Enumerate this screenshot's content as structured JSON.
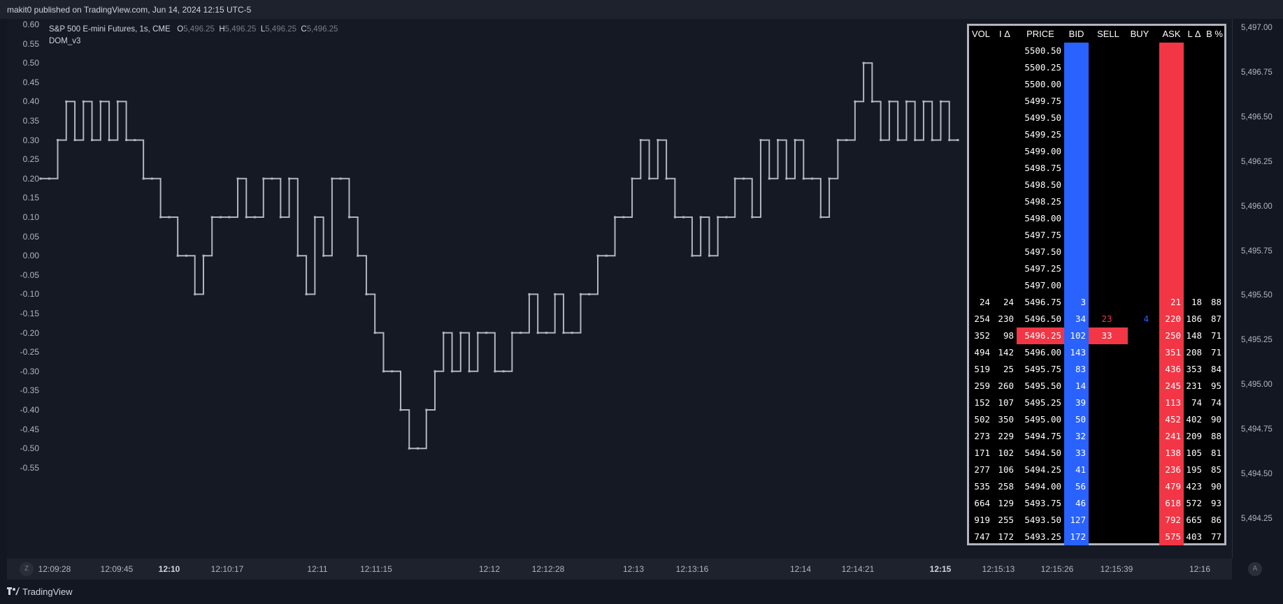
{
  "header": {
    "publish_text": "makit0 published on TradingView.com, Jun 14, 2024 12:15 UTC-5"
  },
  "legend": {
    "symbol": "S&P 500 E-mini Futures, 1s, CME",
    "open_label": "O",
    "open": "5,496.25",
    "high_label": "H",
    "high": "5,496.25",
    "low_label": "L",
    "low": "5,496.25",
    "close_label": "C",
    "close": "5,496.25",
    "indicator": "DOM_v3"
  },
  "left_axis": {
    "ticks": [
      "0.60",
      "0.55",
      "0.50",
      "0.45",
      "0.40",
      "0.35",
      "0.30",
      "0.25",
      "0.20",
      "0.15",
      "0.10",
      "0.05",
      "0.00",
      "-0.05",
      "-0.10",
      "-0.15",
      "-0.20",
      "-0.25",
      "-0.30",
      "-0.35",
      "-0.40",
      "-0.45",
      "-0.50",
      "-0.55"
    ]
  },
  "right_axis": {
    "ticks": [
      "5,497.00",
      "5,496.75",
      "5,496.50",
      "5,496.25",
      "5,496.00",
      "5,495.75",
      "5,495.50",
      "5,495.25",
      "5,495.00",
      "5,494.75",
      "5,494.50",
      "5,494.25"
    ]
  },
  "time_axis": {
    "z_label": "Z",
    "a_label": "A",
    "ticks": [
      {
        "label": "12:09:28",
        "bold": false
      },
      {
        "label": "12:09:45",
        "bold": false
      },
      {
        "label": "12:10",
        "bold": true
      },
      {
        "label": "12:10:17",
        "bold": false
      },
      {
        "label": "12:11",
        "bold": false
      },
      {
        "label": "12:11:15",
        "bold": false
      },
      {
        "label": "12:12",
        "bold": false
      },
      {
        "label": "12:12:28",
        "bold": false
      },
      {
        "label": "12:13",
        "bold": false
      },
      {
        "label": "12:13:16",
        "bold": false
      },
      {
        "label": "12:14",
        "bold": false
      },
      {
        "label": "12:14:21",
        "bold": false
      },
      {
        "label": "12:15",
        "bold": true
      },
      {
        "label": "12:15:13",
        "bold": false
      },
      {
        "label": "12:15:26",
        "bold": false
      },
      {
        "label": "12:15:39",
        "bold": false
      },
      {
        "label": "12:16",
        "bold": false
      }
    ]
  },
  "footer": {
    "brand": "TradingView",
    "logo": "tradingview-logo"
  },
  "dom": {
    "headers": {
      "vol": "VOL",
      "idelta": "I Δ",
      "price": "PRICE",
      "bid": "BID",
      "sell": "SELL",
      "buy": "BUY",
      "ask": "ASK",
      "ldelta": "L Δ",
      "bpct": "B %"
    },
    "rows": [
      {
        "vol": "",
        "id": "",
        "price": "5500.50",
        "bid": "",
        "sell": "",
        "buy": "",
        "ask": "",
        "ld": "",
        "bp": ""
      },
      {
        "vol": "",
        "id": "",
        "price": "5500.25",
        "bid": "",
        "sell": "",
        "buy": "",
        "ask": "",
        "ld": "",
        "bp": ""
      },
      {
        "vol": "",
        "id": "",
        "price": "5500.00",
        "bid": "",
        "sell": "",
        "buy": "",
        "ask": "",
        "ld": "",
        "bp": ""
      },
      {
        "vol": "",
        "id": "",
        "price": "5499.75",
        "bid": "",
        "sell": "",
        "buy": "",
        "ask": "",
        "ld": "",
        "bp": ""
      },
      {
        "vol": "",
        "id": "",
        "price": "5499.50",
        "bid": "",
        "sell": "",
        "buy": "",
        "ask": "",
        "ld": "",
        "bp": ""
      },
      {
        "vol": "",
        "id": "",
        "price": "5499.25",
        "bid": "",
        "sell": "",
        "buy": "",
        "ask": "",
        "ld": "",
        "bp": ""
      },
      {
        "vol": "",
        "id": "",
        "price": "5499.00",
        "bid": "",
        "sell": "",
        "buy": "",
        "ask": "",
        "ld": "",
        "bp": ""
      },
      {
        "vol": "",
        "id": "",
        "price": "5498.75",
        "bid": "",
        "sell": "",
        "buy": "",
        "ask": "",
        "ld": "",
        "bp": ""
      },
      {
        "vol": "",
        "id": "",
        "price": "5498.50",
        "bid": "",
        "sell": "",
        "buy": "",
        "ask": "",
        "ld": "",
        "bp": ""
      },
      {
        "vol": "",
        "id": "",
        "price": "5498.25",
        "bid": "",
        "sell": "",
        "buy": "",
        "ask": "",
        "ld": "",
        "bp": ""
      },
      {
        "vol": "",
        "id": "",
        "price": "5498.00",
        "bid": "",
        "sell": "",
        "buy": "",
        "ask": "",
        "ld": "",
        "bp": ""
      },
      {
        "vol": "",
        "id": "",
        "price": "5497.75",
        "bid": "",
        "sell": "",
        "buy": "",
        "ask": "",
        "ld": "",
        "bp": ""
      },
      {
        "vol": "",
        "id": "",
        "price": "5497.50",
        "bid": "",
        "sell": "",
        "buy": "",
        "ask": "",
        "ld": "",
        "bp": ""
      },
      {
        "vol": "",
        "id": "",
        "price": "5497.25",
        "bid": "",
        "sell": "",
        "buy": "",
        "ask": "",
        "ld": "",
        "bp": ""
      },
      {
        "vol": "",
        "id": "",
        "price": "5497.00",
        "bid": "",
        "sell": "",
        "buy": "",
        "ask": "",
        "ld": "",
        "bp": ""
      },
      {
        "vol": "24",
        "id": "24",
        "price": "5496.75",
        "bid": "3",
        "sell": "",
        "buy": "",
        "ask": "21",
        "ld": "18",
        "bp": "88"
      },
      {
        "vol": "254",
        "id": "230",
        "price": "5496.50",
        "bid": "34",
        "sell": "23",
        "buy": "4",
        "ask": "220",
        "ld": "186",
        "bp": "87"
      },
      {
        "vol": "352",
        "id": "98",
        "price": "5496.25",
        "bid": "102",
        "sell": "33",
        "buy": "",
        "ask": "250",
        "ld": "148",
        "bp": "71",
        "current": true
      },
      {
        "vol": "494",
        "id": "142",
        "price": "5496.00",
        "bid": "143",
        "sell": "",
        "buy": "",
        "ask": "351",
        "ld": "208",
        "bp": "71"
      },
      {
        "vol": "519",
        "id": "25",
        "price": "5495.75",
        "bid": "83",
        "sell": "",
        "buy": "",
        "ask": "436",
        "ld": "353",
        "bp": "84"
      },
      {
        "vol": "259",
        "id": "260",
        "price": "5495.50",
        "bid": "14",
        "sell": "",
        "buy": "",
        "ask": "245",
        "ld": "231",
        "bp": "95"
      },
      {
        "vol": "152",
        "id": "107",
        "price": "5495.25",
        "bid": "39",
        "sell": "",
        "buy": "",
        "ask": "113",
        "ld": "74",
        "bp": "74"
      },
      {
        "vol": "502",
        "id": "350",
        "price": "5495.00",
        "bid": "50",
        "sell": "",
        "buy": "",
        "ask": "452",
        "ld": "402",
        "bp": "90"
      },
      {
        "vol": "273",
        "id": "229",
        "price": "5494.75",
        "bid": "32",
        "sell": "",
        "buy": "",
        "ask": "241",
        "ld": "209",
        "bp": "88"
      },
      {
        "vol": "171",
        "id": "102",
        "price": "5494.50",
        "bid": "33",
        "sell": "",
        "buy": "",
        "ask": "138",
        "ld": "105",
        "bp": "81"
      },
      {
        "vol": "277",
        "id": "106",
        "price": "5494.25",
        "bid": "41",
        "sell": "",
        "buy": "",
        "ask": "236",
        "ld": "195",
        "bp": "85"
      },
      {
        "vol": "535",
        "id": "258",
        "price": "5494.00",
        "bid": "56",
        "sell": "",
        "buy": "",
        "ask": "479",
        "ld": "423",
        "bp": "90"
      },
      {
        "vol": "664",
        "id": "129",
        "price": "5493.75",
        "bid": "46",
        "sell": "",
        "buy": "",
        "ask": "618",
        "ld": "572",
        "bp": "93"
      },
      {
        "vol": "919",
        "id": "255",
        "price": "5493.50",
        "bid": "127",
        "sell": "",
        "buy": "",
        "ask": "792",
        "ld": "665",
        "bp": "86"
      },
      {
        "vol": "747",
        "id": "172",
        "price": "5493.25",
        "bid": "172",
        "sell": "",
        "buy": "",
        "ask": "575",
        "ld": "403",
        "bp": "77"
      }
    ]
  },
  "chart_data": {
    "type": "line",
    "title": "S&P 500 E-mini Futures, 1s, CME",
    "ylim": [
      -0.55,
      0.6
    ],
    "colors": {
      "up": "#b2b5be",
      "down": "#b2b5be",
      "bid": "#2962ff",
      "ask": "#f23645"
    },
    "grid": false,
    "series": [
      {
        "values": [
          0.2,
          0.2,
          0.3,
          0.4,
          0.3,
          0.4,
          0.3,
          0.4,
          0.3,
          0.4,
          0.3,
          0.3,
          0.2,
          0.2,
          0.1,
          0.1,
          0.0,
          0.0,
          -0.1,
          0.0,
          0.1,
          0.1,
          0.1,
          0.2,
          0.1,
          0.1,
          0.2,
          0.2,
          0.1,
          0.2,
          0.0,
          -0.1,
          0.1,
          0.0,
          0.2,
          0.2,
          0.1,
          0.0,
          -0.1,
          -0.2,
          -0.3,
          -0.3,
          -0.4,
          -0.5,
          -0.5,
          -0.4,
          -0.3,
          -0.2,
          -0.3,
          -0.2,
          -0.3,
          -0.2,
          -0.2,
          -0.3,
          -0.3,
          -0.2,
          -0.2,
          -0.1,
          -0.2,
          -0.2,
          -0.1,
          -0.2,
          -0.2,
          -0.1,
          -0.1,
          0.0,
          0.0,
          0.1,
          0.1,
          0.2,
          0.3,
          0.2,
          0.3,
          0.2,
          0.1,
          0.1,
          0.0,
          0.1,
          0.0,
          0.1,
          0.1,
          0.2,
          0.2,
          0.1,
          0.3,
          0.2,
          0.3,
          0.2,
          0.3,
          0.2,
          0.2,
          0.1,
          0.2,
          0.3,
          0.3,
          0.4,
          0.5,
          0.4,
          0.3,
          0.4,
          0.3,
          0.4,
          0.3,
          0.4,
          0.3,
          0.4,
          0.3,
          0.3
        ]
      }
    ]
  }
}
